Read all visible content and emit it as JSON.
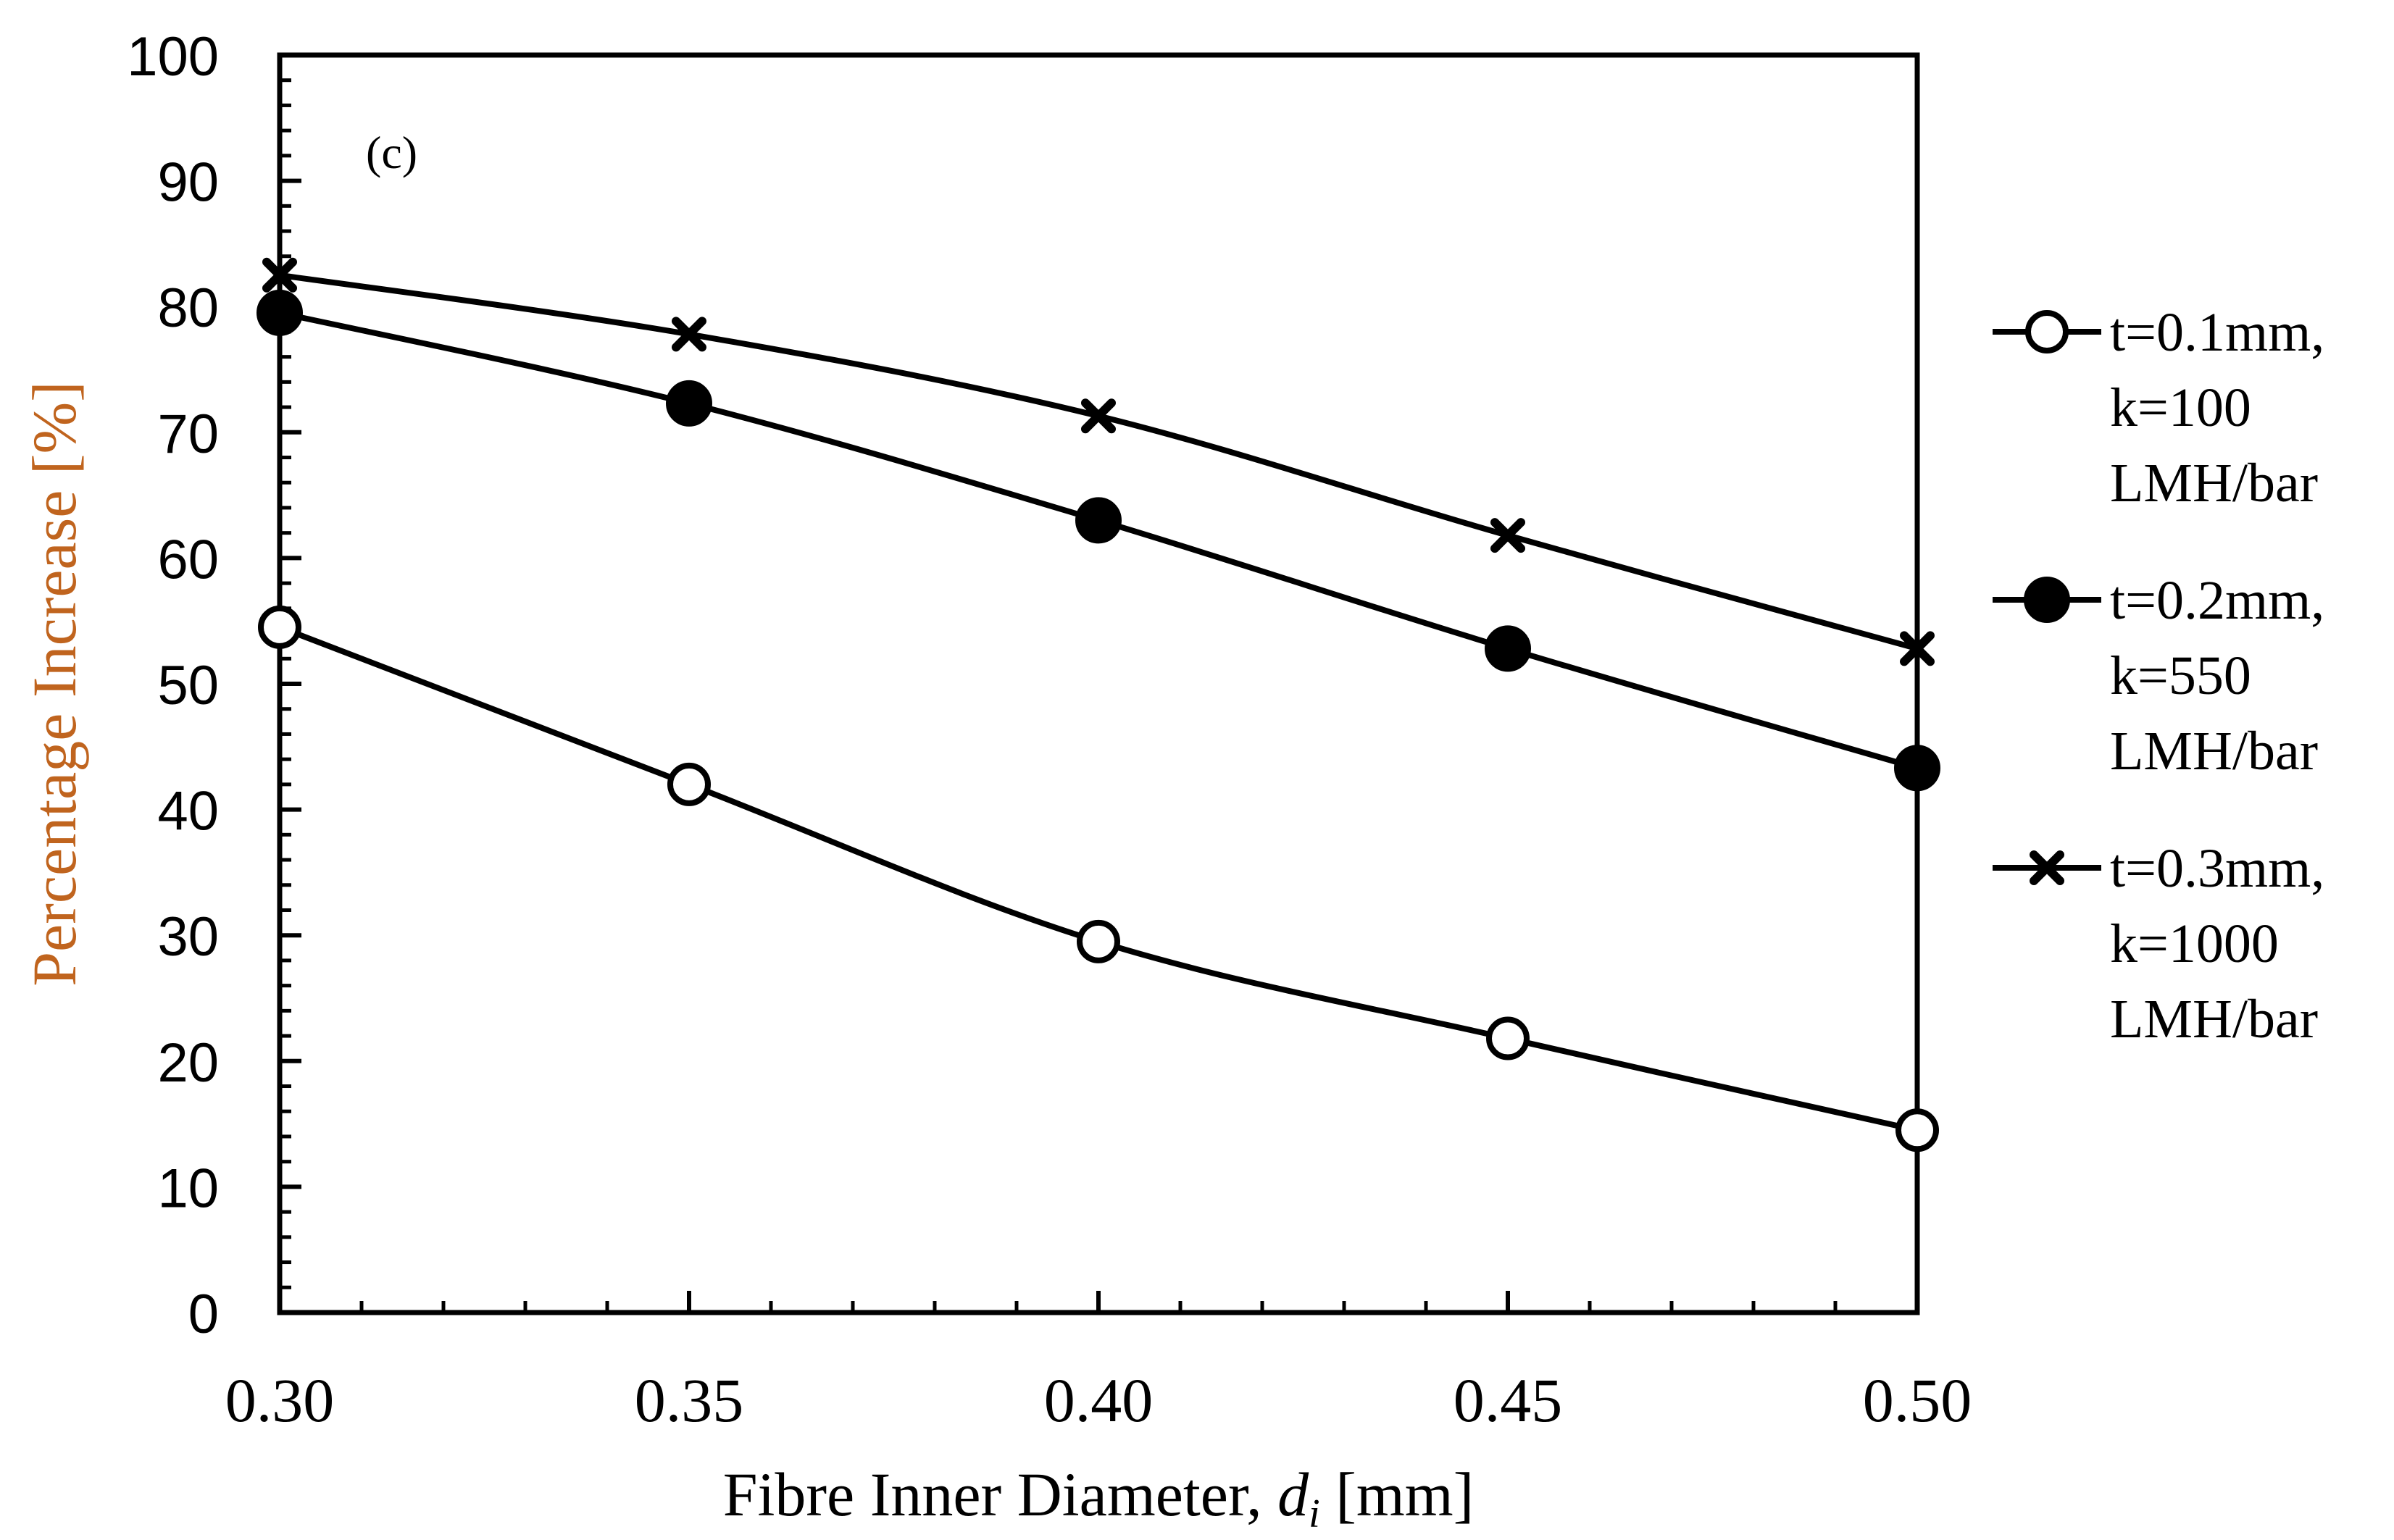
{
  "chart_data": {
    "type": "line",
    "panel_label": "(c)",
    "xlabel_main": "Fibre Inner Diameter, ",
    "xlabel_var": "d",
    "xlabel_sub": "i",
    "xlabel_unit": " [mm]",
    "ylabel": "Percentage Increase [%]",
    "x": [
      0.3,
      0.35,
      0.4,
      0.45,
      0.5
    ],
    "x_tick_labels": [
      "0.30",
      "0.35",
      "0.40",
      "0.45",
      "0.50"
    ],
    "xlim": [
      0.3,
      0.5
    ],
    "x_minor_step": 0.01,
    "ylim": [
      0,
      100
    ],
    "y_tick_labels": [
      "0",
      "10",
      "20",
      "30",
      "40",
      "50",
      "60",
      "70",
      "80",
      "90",
      "100"
    ],
    "y_minor_step": 2,
    "grid": false,
    "legend_position": "right",
    "colors": {
      "line": "#000000",
      "ylabel": "#c0641e"
    },
    "series": [
      {
        "name": "t=0.1mm, k=100 LMH/bar",
        "legend_lines": [
          "t=0.1mm,",
          "k=100",
          "LMH/bar"
        ],
        "marker": "open-circle",
        "values": [
          54.5,
          42.0,
          29.5,
          21.8,
          14.5
        ]
      },
      {
        "name": "t=0.2mm, k=550 LMH/bar",
        "legend_lines": [
          "t=0.2mm,",
          "k=550",
          "LMH/bar"
        ],
        "marker": "filled-circle",
        "values": [
          79.5,
          72.3,
          63.0,
          52.8,
          43.3
        ]
      },
      {
        "name": "t=0.3mm, k=1000 LMH/bar",
        "legend_lines": [
          "t=0.3mm,",
          "k=1000",
          "LMH/bar"
        ],
        "marker": "x",
        "values": [
          82.5,
          77.8,
          71.3,
          61.8,
          52.8
        ]
      }
    ]
  }
}
